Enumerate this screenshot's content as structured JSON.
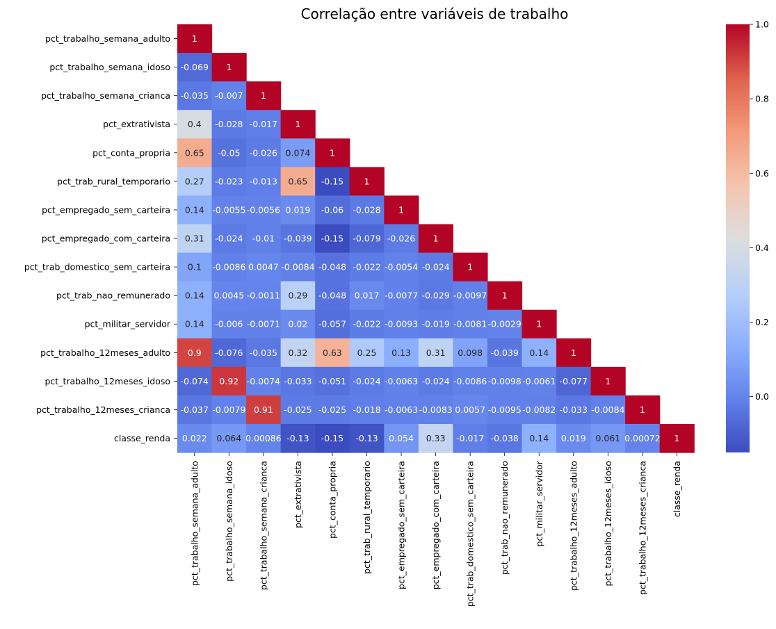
{
  "chart_data": {
    "type": "heatmap",
    "title": "Correlação entre variáveis de trabalho",
    "variables": [
      "pct_trabalho_semana_adulto",
      "pct_trabalho_semana_idoso",
      "pct_trabalho_semana_crianca",
      "pct_extrativista",
      "pct_conta_propria",
      "pct_trab_rural_temporario",
      "pct_empregado_sem_carteira",
      "pct_empregado_com_carteira",
      "pct_trab_domestico_sem_carteira",
      "pct_trab_nao_remunerado",
      "pct_militar_servidor",
      "pct_trabalho_12meses_adulto",
      "pct_trabalho_12meses_idoso",
      "pct_trabalho_12meses_crianca",
      "classe_renda"
    ],
    "mask": "upper triangle (lower triangle and diagonal shown)",
    "values": [
      [
        "1"
      ],
      [
        "-0.069",
        "1"
      ],
      [
        "-0.035",
        "-0.007",
        "1"
      ],
      [
        "0.4",
        "-0.028",
        "-0.017",
        "1"
      ],
      [
        "0.65",
        "-0.05",
        "-0.026",
        "0.074",
        "1"
      ],
      [
        "0.27",
        "-0.023",
        "-0.013",
        "0.65",
        "-0.15",
        "1"
      ],
      [
        "0.14",
        "-0.0055",
        "-0.0056",
        "0.019",
        "-0.06",
        "-0.028",
        "1"
      ],
      [
        "0.31",
        "-0.024",
        "-0.01",
        "-0.039",
        "-0.15",
        "-0.079",
        "-0.026",
        "1"
      ],
      [
        "0.1",
        "-0.0086",
        "0.0047",
        "-0.0084",
        "-0.048",
        "-0.022",
        "-0.0054",
        "-0.024",
        "1"
      ],
      [
        "0.14",
        "0.0045",
        "-0.0011",
        "0.29",
        "-0.048",
        "0.017",
        "-0.0077",
        "-0.029",
        "-0.0097",
        "1"
      ],
      [
        "0.14",
        "-0.006",
        "-0.0071",
        "0.02",
        "-0.057",
        "-0.022",
        "-0.0093",
        "-0.019",
        "-0.0081",
        "-0.0029",
        "1"
      ],
      [
        "0.9",
        "-0.076",
        "-0.035",
        "0.32",
        "0.63",
        "0.25",
        "0.13",
        "0.31",
        "0.098",
        "-0.039",
        "0.14",
        "1"
      ],
      [
        "-0.074",
        "0.92",
        "-0.0074",
        "-0.033",
        "-0.051",
        "-0.024",
        "-0.0063",
        "-0.024",
        "-0.0086",
        "-0.0098",
        "-0.0061",
        "-0.077",
        "1"
      ],
      [
        "-0.037",
        "-0.0079",
        "0.91",
        "-0.025",
        "-0.025",
        "-0.018",
        "-0.0063",
        "-0.0083",
        "0.0057",
        "-0.0095",
        "-0.0082",
        "-0.033",
        "-0.0084",
        "1"
      ],
      [
        "0.022",
        "0.064",
        "0.00086",
        "-0.13",
        "-0.15",
        "-0.13",
        "0.054",
        "0.33",
        "-0.017",
        "-0.038",
        "0.14",
        "0.019",
        "0.061",
        "0.00072",
        "1"
      ]
    ],
    "colormap": "coolwarm",
    "vmin": -0.15,
    "vmax": 1.0,
    "colorbar_ticks": [
      "0.0",
      "0.2",
      "0.4",
      "0.6",
      "0.8",
      "1.0"
    ],
    "grid": false,
    "legend": "colorbar right"
  }
}
